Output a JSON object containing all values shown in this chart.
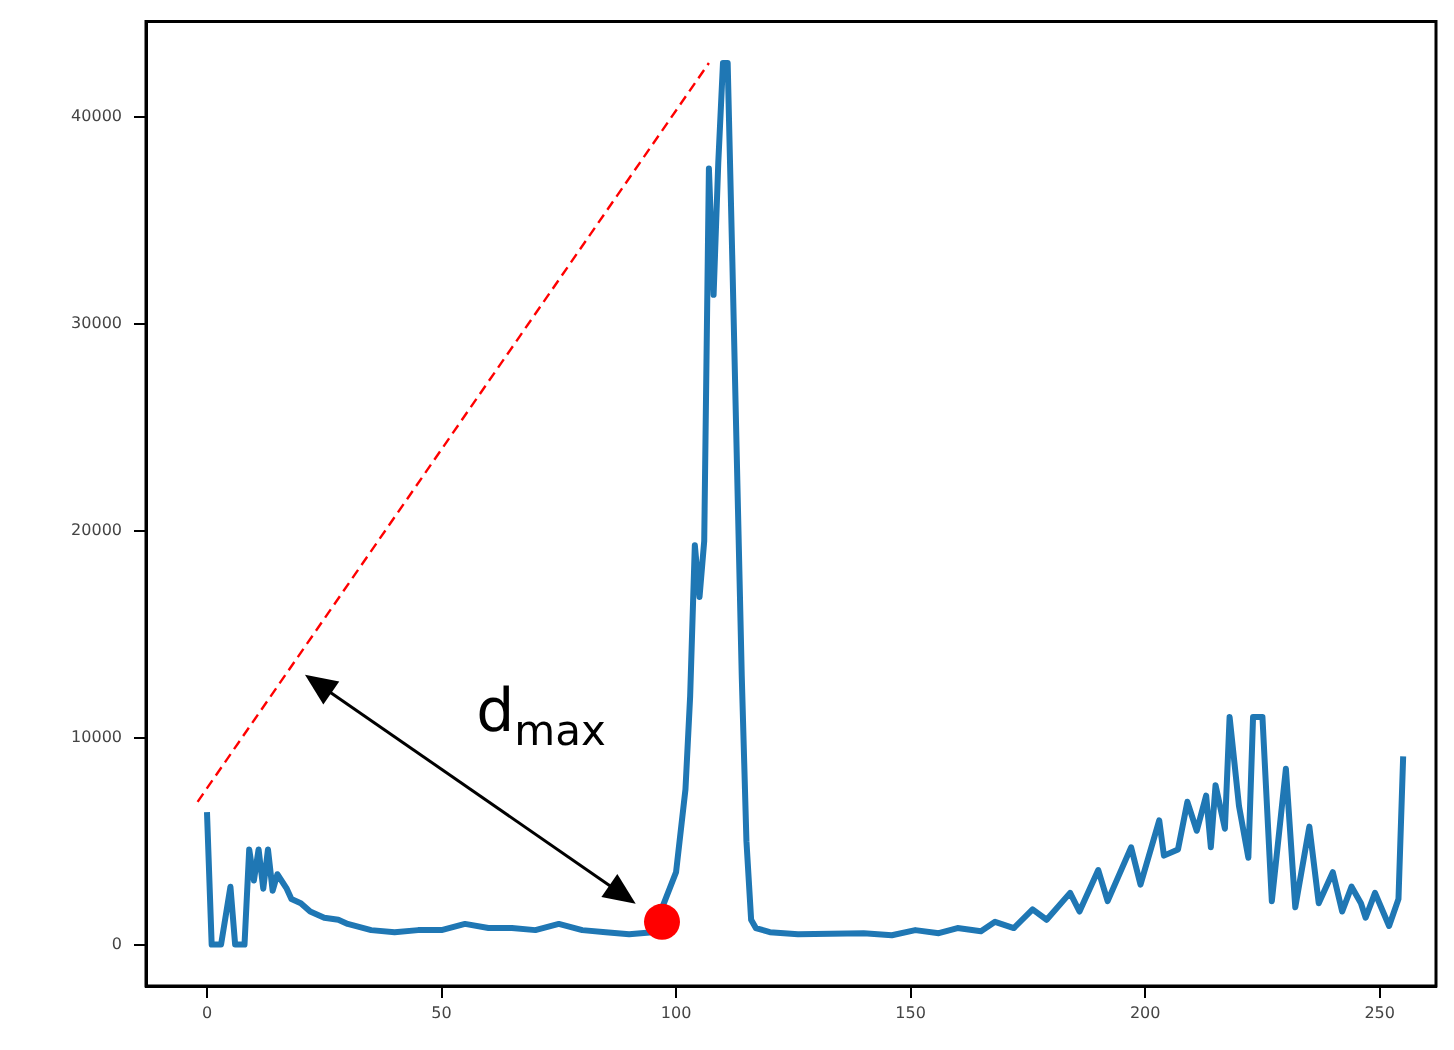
{
  "chart_data": {
    "type": "line",
    "xlim": [
      -13,
      262
    ],
    "xticks": [
      0,
      50,
      100,
      150,
      200,
      250
    ],
    "ylim": [
      -2000,
      44600
    ],
    "yticks": [
      0,
      10000,
      20000,
      30000,
      40000
    ],
    "grid": false,
    "legend": false,
    "marker": "none",
    "series": [
      {
        "type": "line",
        "color": "#1f77b4",
        "line_style": "solid",
        "x": [
          0,
          1,
          3,
          5,
          6,
          8,
          9,
          10,
          11,
          12,
          13,
          14,
          15,
          17,
          18,
          20,
          22,
          25,
          28,
          30,
          35,
          40,
          45,
          50,
          55,
          60,
          65,
          70,
          75,
          80,
          85,
          90,
          95,
          97,
          100,
          102,
          103,
          104,
          105,
          106,
          107,
          108,
          109,
          110,
          111,
          112,
          113,
          114,
          115,
          116,
          117,
          120,
          126,
          140,
          146,
          151,
          156,
          160,
          165,
          168,
          172,
          176,
          179,
          184,
          186,
          190,
          192,
          197,
          199,
          203,
          204,
          207,
          209,
          211,
          213,
          214,
          215,
          217,
          218,
          220,
          222,
          223,
          225,
          227,
          230,
          232,
          235,
          237,
          240,
          242,
          244,
          246,
          247,
          249,
          252,
          254,
          255
        ],
        "values": [
          6400,
          0,
          0,
          2800,
          0,
          0,
          4600,
          3100,
          4600,
          2700,
          4600,
          2600,
          3400,
          2700,
          2200,
          2000,
          1600,
          1300,
          1200,
          1000,
          700,
          600,
          700,
          700,
          1000,
          800,
          800,
          700,
          1000,
          700,
          600,
          500,
          600,
          null,
          3500,
          7500,
          12000,
          19300,
          16800,
          19500,
          37500,
          31400,
          37800,
          42600,
          42600,
          33000,
          23000,
          13000,
          5000,
          1200,
          800,
          600,
          500,
          550,
          450,
          700,
          550,
          800,
          650,
          1100,
          800,
          1700,
          1200,
          2500,
          1600,
          3600,
          2100,
          4700,
          2900,
          6000,
          4300,
          4600,
          6900,
          5500,
          7200,
          4700,
          7700,
          5600,
          11000,
          6700,
          4200,
          11000,
          11000,
          2100,
          8500,
          1800,
          5700,
          2000,
          3500,
          1600,
          2800,
          2000,
          1300,
          2500,
          900,
          2200,
          9100
        ]
      },
      {
        "type": "line",
        "color": "#ff0000",
        "line_style": "dashed",
        "x": [
          -2,
          107
        ],
        "values": [
          6900,
          42600
        ]
      },
      {
        "type": "scatter",
        "color": "#ff0000",
        "marker": "circle",
        "x": [
          97
        ],
        "values": [
          1100
        ]
      }
    ],
    "annotations": [
      "d$_{max}$"
    ]
  }
}
